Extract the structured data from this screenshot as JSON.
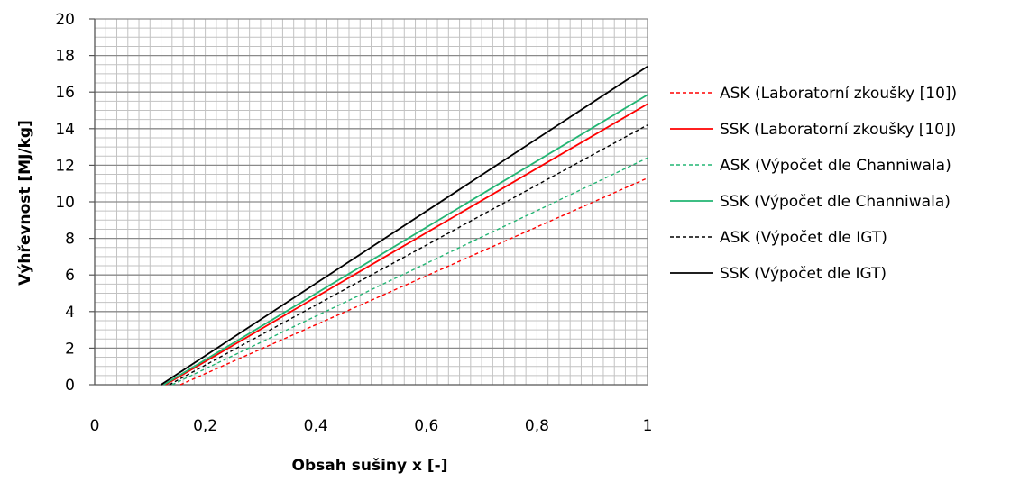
{
  "chart_data": {
    "type": "line",
    "title": "",
    "xlabel": "Obsah sušiny x [-]",
    "ylabel": "Výhřevnost [MJ/kg]",
    "xlim": [
      0,
      1
    ],
    "ylim": [
      0,
      20
    ],
    "x_ticks": [
      "0",
      "0,2",
      "0,4",
      "0,6",
      "0,8",
      "1"
    ],
    "y_ticks": [
      "0",
      "2",
      "4",
      "6",
      "8",
      "10",
      "12",
      "14",
      "16",
      "18",
      "20"
    ],
    "grid": true,
    "legend_position": "right",
    "series": [
      {
        "name": "ASK (Laboratorní zkoušky [10])",
        "color": "#ff0000",
        "style": "dashed",
        "points": [
          [
            0.155,
            0
          ],
          [
            1,
            11.3
          ]
        ]
      },
      {
        "name": "SSK (Laboratorní zkoušky [10])",
        "color": "#ff0000",
        "style": "solid",
        "points": [
          [
            0.128,
            0
          ],
          [
            1,
            15.35
          ]
        ]
      },
      {
        "name": "ASK (Výpočet dle Channiwala)",
        "color": "#22b573",
        "style": "dashed",
        "points": [
          [
            0.14,
            0
          ],
          [
            1,
            12.4
          ]
        ]
      },
      {
        "name": "SSK (Výpočet dle Channiwala)",
        "color": "#22b573",
        "style": "solid",
        "points": [
          [
            0.125,
            0
          ],
          [
            1,
            15.85
          ]
        ]
      },
      {
        "name": "ASK (Výpočet dle IGT)",
        "color": "#000000",
        "style": "dashed",
        "points": [
          [
            0.135,
            0
          ],
          [
            1,
            14.2
          ]
        ]
      },
      {
        "name": "SSK (Výpočet dle IGT)",
        "color": "#000000",
        "style": "solid",
        "points": [
          [
            0.12,
            0
          ],
          [
            1,
            17.4
          ]
        ]
      }
    ]
  }
}
